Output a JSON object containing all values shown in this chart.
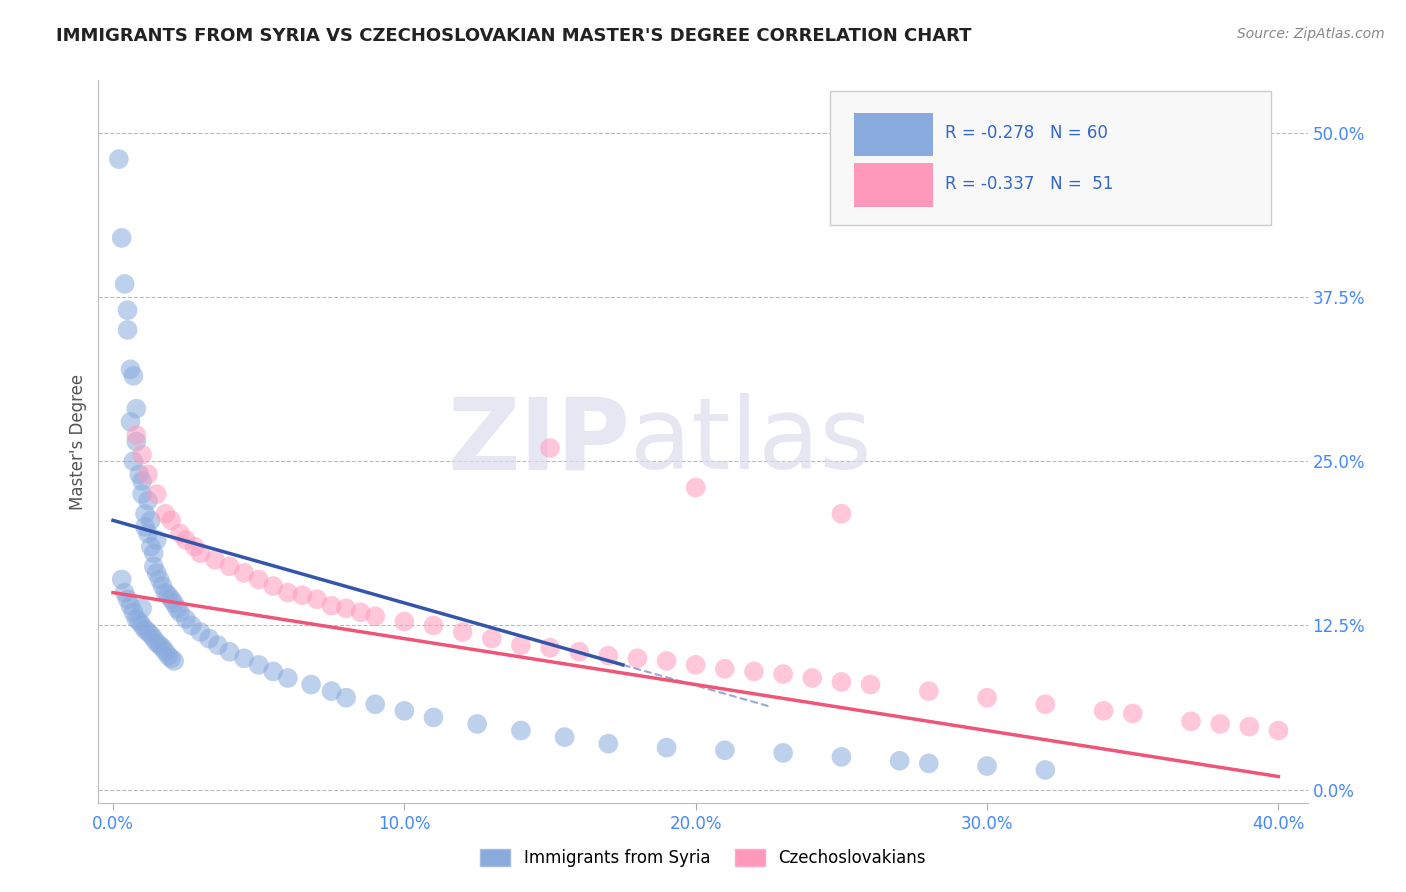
{
  "title": "IMMIGRANTS FROM SYRIA VS CZECHOSLOVAKIAN MASTER'S DEGREE CORRELATION CHART",
  "source": "Source: ZipAtlas.com",
  "xlabel_blue": "Immigrants from Syria",
  "xlabel_pink": "Czechoslovakians",
  "ylabel": "Master's Degree",
  "x_ticks": [
    0.0,
    10.0,
    20.0,
    30.0,
    40.0
  ],
  "x_tick_labels": [
    "0.0%",
    "10.0%",
    "20.0%",
    "30.0%",
    "40.0%"
  ],
  "y_ticks_right": [
    0.0,
    12.5,
    25.0,
    37.5,
    50.0
  ],
  "y_tick_labels_right": [
    "0.0%",
    "12.5%",
    "25.0%",
    "37.5%",
    "50.0%"
  ],
  "xlim": [
    -0.5,
    41.0
  ],
  "ylim": [
    -1.0,
    54.0
  ],
  "blue_R": -0.278,
  "blue_N": 60,
  "pink_R": -0.337,
  "pink_N": 51,
  "blue_color": "#88AADD",
  "pink_color": "#FF99BB",
  "blue_line_color": "#3355AA",
  "pink_line_color": "#EE5577",
  "watermark_zip": "ZIP",
  "watermark_atlas": "atlas",
  "background_color": "#FFFFFF",
  "grid_color": "#BBBBBB",
  "blue_scatter_x": [
    0.2,
    0.3,
    0.4,
    0.5,
    0.5,
    0.6,
    0.6,
    0.7,
    0.7,
    0.8,
    0.8,
    0.9,
    1.0,
    1.0,
    1.1,
    1.1,
    1.2,
    1.2,
    1.3,
    1.3,
    1.4,
    1.4,
    1.5,
    1.5,
    1.6,
    1.7,
    1.8,
    1.9,
    2.0,
    2.1,
    2.2,
    2.3,
    2.5,
    2.7,
    3.0,
    3.3,
    3.6,
    4.0,
    4.5,
    5.0,
    5.5,
    6.0,
    6.8,
    7.5,
    8.0,
    9.0,
    10.0,
    11.0,
    12.5,
    14.0,
    15.5,
    17.0,
    19.0,
    21.0,
    23.0,
    25.0,
    27.0,
    28.0,
    30.0,
    32.0
  ],
  "blue_scatter_y": [
    48.0,
    42.0,
    38.5,
    35.0,
    36.5,
    32.0,
    28.0,
    25.0,
    31.5,
    26.5,
    29.0,
    24.0,
    22.5,
    23.5,
    21.0,
    20.0,
    19.5,
    22.0,
    18.5,
    20.5,
    18.0,
    17.0,
    16.5,
    19.0,
    16.0,
    15.5,
    15.0,
    14.8,
    14.5,
    14.2,
    13.8,
    13.5,
    13.0,
    12.5,
    12.0,
    11.5,
    11.0,
    10.5,
    10.0,
    9.5,
    9.0,
    8.5,
    8.0,
    7.5,
    7.0,
    6.5,
    6.0,
    5.5,
    5.0,
    4.5,
    4.0,
    3.5,
    3.2,
    3.0,
    2.8,
    2.5,
    2.2,
    2.0,
    1.8,
    1.5
  ],
  "pink_scatter_x": [
    0.8,
    1.0,
    1.2,
    1.5,
    1.8,
    2.0,
    2.3,
    2.5,
    2.8,
    3.0,
    3.5,
    4.0,
    4.5,
    5.0,
    5.5,
    6.0,
    6.5,
    7.0,
    7.5,
    8.0,
    8.5,
    9.0,
    10.0,
    11.0,
    12.0,
    13.0,
    14.0,
    15.0,
    16.0,
    17.0,
    18.0,
    19.0,
    20.0,
    21.0,
    22.0,
    23.0,
    24.0,
    25.0,
    26.0,
    28.0,
    30.0,
    32.0,
    34.0,
    35.0,
    37.0,
    38.0,
    39.0,
    40.0,
    15.0,
    20.0,
    25.0
  ],
  "pink_scatter_y": [
    27.0,
    25.5,
    24.0,
    22.5,
    21.0,
    20.5,
    19.5,
    19.0,
    18.5,
    18.0,
    17.5,
    17.0,
    16.5,
    16.0,
    15.5,
    15.0,
    14.8,
    14.5,
    14.0,
    13.8,
    13.5,
    13.2,
    12.8,
    12.5,
    12.0,
    11.5,
    11.0,
    10.8,
    10.5,
    10.2,
    10.0,
    9.8,
    9.5,
    9.2,
    9.0,
    8.8,
    8.5,
    8.2,
    8.0,
    7.5,
    7.0,
    6.5,
    6.0,
    5.8,
    5.2,
    5.0,
    4.8,
    4.5,
    26.0,
    23.0,
    21.0
  ],
  "blue_line_x0": 0.0,
  "blue_line_y0": 20.5,
  "blue_line_x1": 17.5,
  "blue_line_y1": 9.5,
  "pink_line_x0": 0.0,
  "pink_line_y0": 15.0,
  "pink_line_x1": 40.0,
  "pink_line_y1": 1.0
}
